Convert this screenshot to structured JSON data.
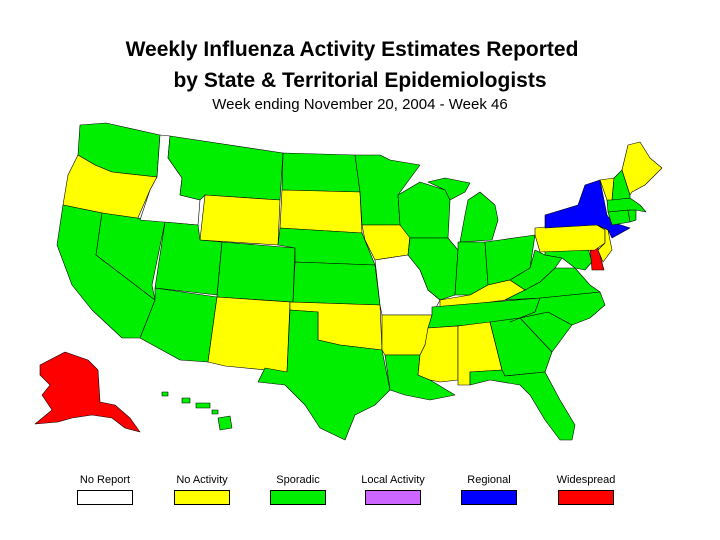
{
  "title_line1": "Weekly Influenza Activity Estimates Reported",
  "title_line2": "by State & Territorial Epidemiologists",
  "subtitle": "Week ending November 20, 2004 - Week 46",
  "legend": [
    {
      "label": "No Report",
      "color": "#ffffff",
      "key": "none"
    },
    {
      "label": "No Activity",
      "color": "#ffff00",
      "key": "no"
    },
    {
      "label": "Sporadic",
      "color": "#00ee00",
      "key": "sporadic"
    },
    {
      "label": "Local Activity",
      "color": "#cc66ff",
      "key": "local"
    },
    {
      "label": "Regional",
      "color": "#0000ff",
      "key": "regional"
    },
    {
      "label": "Widespread",
      "color": "#ff0000",
      "key": "widespread"
    }
  ],
  "states": {
    "WA": "sporadic",
    "OR": "no",
    "CA": "sporadic",
    "NV": "sporadic",
    "ID": "none",
    "MT": "sporadic",
    "WY": "no",
    "UT": "sporadic",
    "AZ": "sporadic",
    "CO": "sporadic",
    "NM": "no",
    "ND": "sporadic",
    "SD": "no",
    "NE": "sporadic",
    "KS": "sporadic",
    "OK": "no",
    "TX": "sporadic",
    "MN": "sporadic",
    "IA": "no",
    "MO": "none",
    "AR": "no",
    "LA": "sporadic",
    "WI": "sporadic",
    "IL": "sporadic",
    "MI": "sporadic",
    "IN": "sporadic",
    "OH": "sporadic",
    "KY": "no",
    "TN": "sporadic",
    "MS": "no",
    "AL": "no",
    "GA": "sporadic",
    "FL": "sporadic",
    "SC": "sporadic",
    "NC": "sporadic",
    "VA": "sporadic",
    "WV": "sporadic",
    "MD": "sporadic",
    "DE": "widespread",
    "PA": "no",
    "NJ": "no",
    "NY": "regional",
    "CT": "sporadic",
    "RI": "sporadic",
    "MA": "sporadic",
    "VT": "no",
    "NH": "sporadic",
    "ME": "no",
    "AK": "widespread",
    "HI": "sporadic"
  }
}
